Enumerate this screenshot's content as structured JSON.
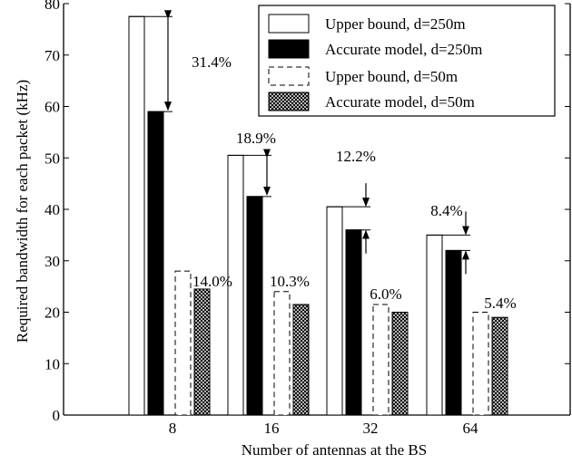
{
  "chart_data": {
    "type": "bar",
    "title": "",
    "xlabel": "Number of antennas at the BS",
    "ylabel": "Required bandwidth for each packet (kHz)",
    "ylim": [
      0,
      80
    ],
    "yticks": [
      "0",
      "10",
      "20",
      "30",
      "40",
      "50",
      "60",
      "70",
      "80"
    ],
    "categories": [
      "8",
      "16",
      "32",
      "64"
    ],
    "grid": false,
    "legend_position": "top-right",
    "series": [
      {
        "name": "Upper bound, d=250m",
        "style": "white",
        "values": [
          77.5,
          50.5,
          40.5,
          35.0
        ]
      },
      {
        "name": "Accurate model, d=250m",
        "style": "black",
        "values": [
          59.0,
          42.5,
          36.0,
          32.0
        ]
      },
      {
        "name": "Upper bound, d=50m",
        "style": "dashed",
        "values": [
          28.0,
          24.0,
          21.5,
          20.0
        ]
      },
      {
        "name": "Accurate model, d=50m",
        "style": "crosshatch",
        "values": [
          24.5,
          21.5,
          20.0,
          19.0
        ]
      }
    ],
    "annotations": {
      "d250": [
        "31.4%",
        "18.9%",
        "12.2%",
        "8.4%"
      ],
      "d50": [
        "14.0%",
        "10.3%",
        "6.0%",
        "5.4%"
      ]
    }
  },
  "colors": {
    "black_bar": "#000000",
    "white_bar": "#ffffff",
    "axis": "#000000"
  }
}
